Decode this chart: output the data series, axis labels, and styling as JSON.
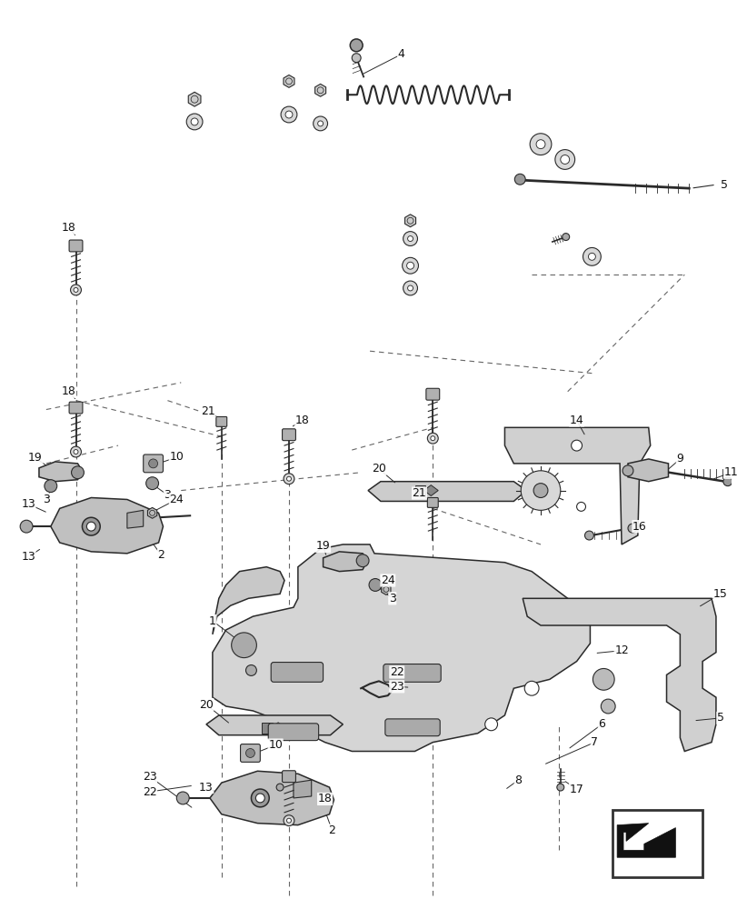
{
  "bg_color": "#ffffff",
  "line_color": "#2a2a2a",
  "gray_fill": "#d0d0d0",
  "gray_dark": "#888888",
  "gray_light": "#e8e8e8",
  "dashed_color": "#555555",
  "label_color": "#111111",
  "figsize": [
    8.12,
    10.0
  ],
  "dpi": 100
}
